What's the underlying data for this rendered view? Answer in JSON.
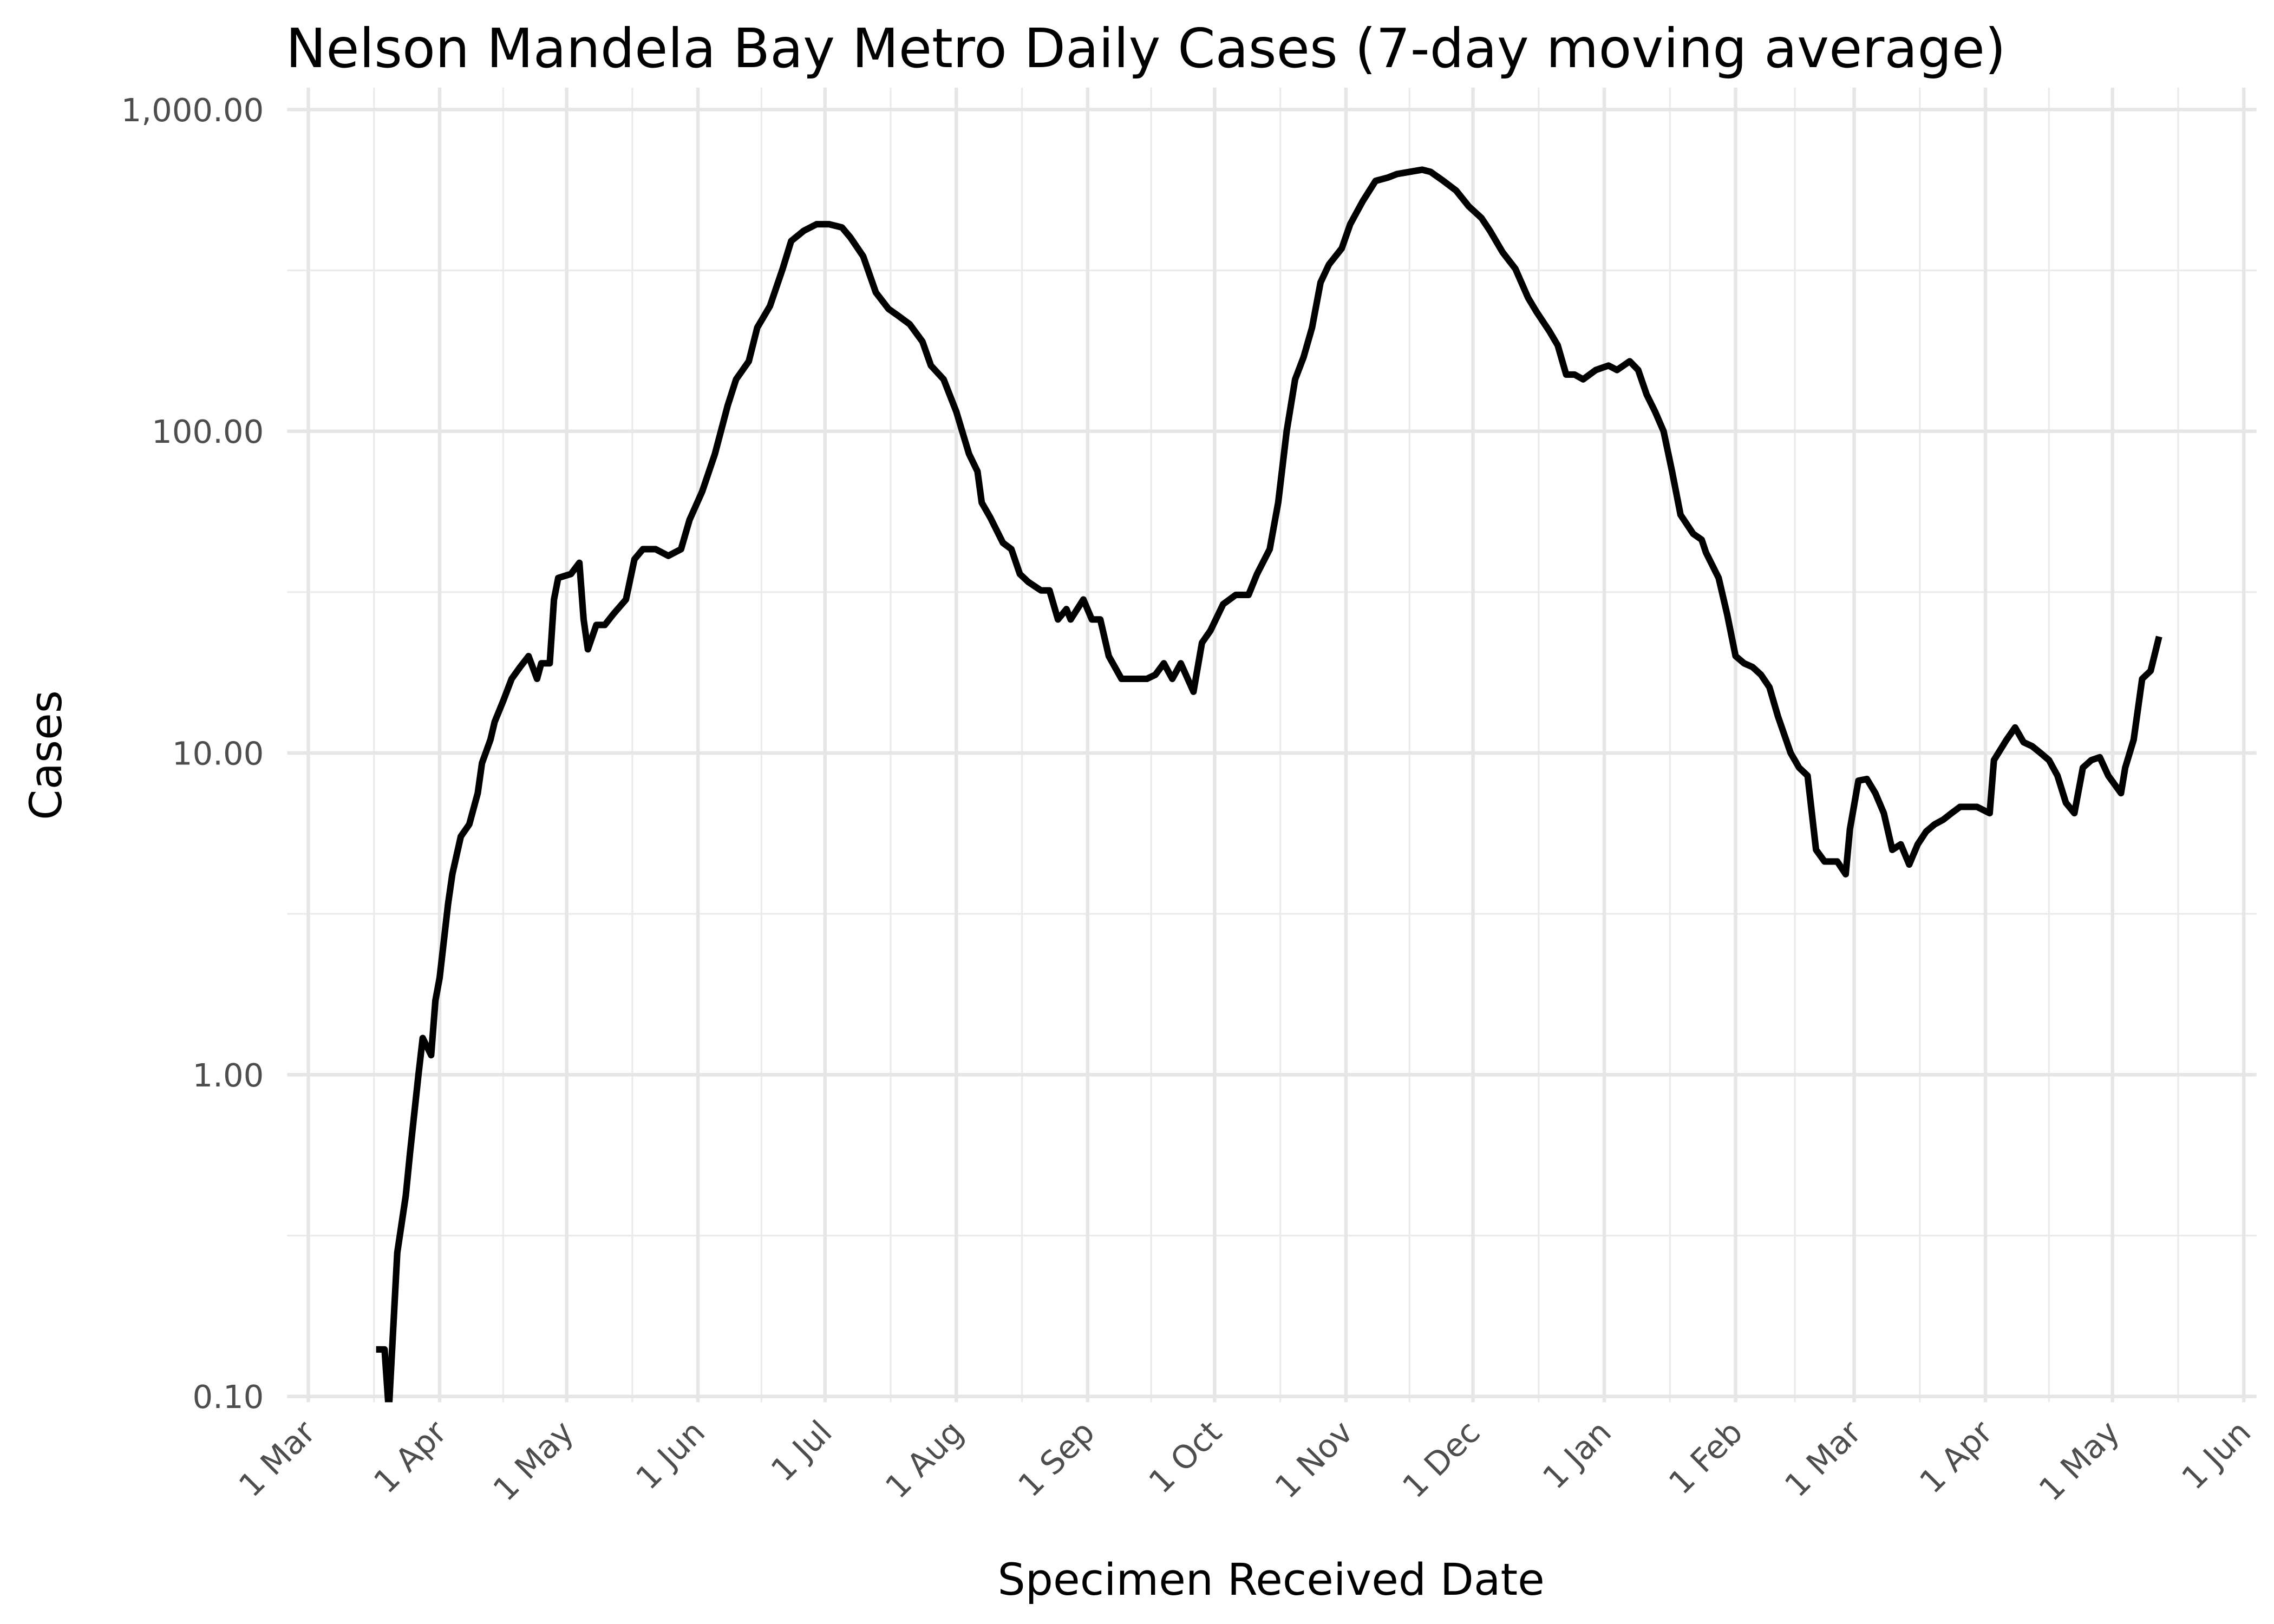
{
  "chart_data": {
    "type": "line",
    "title": "Nelson Mandela Bay Metro Daily Cases (7-day moving average)",
    "x_label": "Specimen Received Date",
    "y_label": "Cases",
    "log_y": true,
    "grid": true,
    "xlim": [
      -5,
      460
    ],
    "ylim": [
      0.1,
      1000
    ],
    "xticks": [
      {
        "value": 0,
        "label": "1 Mar"
      },
      {
        "value": 31,
        "label": "1 Apr"
      },
      {
        "value": 61,
        "label": "1 May"
      },
      {
        "value": 92,
        "label": "1 Jun"
      },
      {
        "value": 122,
        "label": "1 Jul"
      },
      {
        "value": 153,
        "label": "1 Aug"
      },
      {
        "value": 184,
        "label": "1 Sep"
      },
      {
        "value": 214,
        "label": "1 Oct"
      },
      {
        "value": 245,
        "label": "1 Nov"
      },
      {
        "value": 275,
        "label": "1 Dec"
      },
      {
        "value": 306,
        "label": "1 Jan"
      },
      {
        "value": 337,
        "label": "1 Feb"
      },
      {
        "value": 365,
        "label": "1 Mar"
      },
      {
        "value": 396,
        "label": "1 Apr"
      },
      {
        "value": 426,
        "label": "1 May"
      },
      {
        "value": 457,
        "label": "1 Jun"
      }
    ],
    "yticks": [
      {
        "value": 0.1,
        "label": "0.10"
      },
      {
        "value": 1,
        "label": "1.00"
      },
      {
        "value": 10,
        "label": "10.00"
      },
      {
        "value": 100,
        "label": "100.00"
      },
      {
        "value": 1000,
        "label": "1,000.00"
      }
    ],
    "x": [
      16,
      18,
      19,
      21,
      23,
      24,
      26,
      27,
      29,
      30,
      31,
      33,
      34,
      36,
      38,
      40,
      41,
      43,
      44,
      46,
      48,
      50,
      52,
      54,
      55,
      57,
      58,
      59,
      62,
      64,
      65,
      66,
      68,
      70,
      72,
      75,
      77,
      79,
      82,
      85,
      88,
      90,
      93,
      96,
      99,
      101,
      104,
      106,
      109,
      112,
      114,
      117,
      120,
      123,
      126,
      128,
      131,
      134,
      137,
      139,
      142,
      145,
      147,
      150,
      153,
      156,
      158,
      159,
      161,
      164,
      166,
      168,
      170,
      173,
      175,
      177,
      179,
      180,
      183,
      185,
      187,
      189,
      192,
      195,
      198,
      200,
      202,
      204,
      206,
      209,
      211,
      213,
      216,
      219,
      222,
      224,
      227,
      229,
      231,
      233,
      235,
      237,
      239,
      241,
      244,
      246,
      249,
      252,
      255,
      257,
      260,
      263,
      265,
      268,
      271,
      274,
      277,
      279,
      282,
      285,
      288,
      290,
      293,
      295,
      297,
      299,
      301,
      304,
      307,
      309,
      312,
      314,
      316,
      318,
      320,
      322,
      324,
      327,
      329,
      330,
      333,
      335,
      337,
      339,
      341,
      343,
      345,
      347,
      350,
      352,
      354,
      356,
      358,
      361,
      363,
      364,
      366,
      368,
      370,
      372,
      374,
      376,
      378,
      380,
      382,
      384,
      386,
      388,
      390,
      392,
      394,
      397,
      398,
      401,
      403,
      405,
      407,
      409,
      411,
      413,
      415,
      417,
      419,
      421,
      423,
      425,
      428,
      429,
      431,
      433,
      435,
      437
    ],
    "series": [
      {
        "name": "Cases",
        "color": "#000000",
        "values": [
          0.14,
          0.14,
          0.09,
          0.28,
          0.42,
          0.57,
          1.0,
          1.3,
          1.15,
          1.7,
          2.0,
          3.4,
          4.2,
          5.5,
          6.0,
          7.5,
          9.3,
          11,
          12.5,
          14.5,
          17,
          18.5,
          20,
          17,
          19,
          19,
          30,
          35,
          36,
          39,
          26,
          21,
          25,
          25,
          27,
          30,
          40,
          43,
          43,
          41,
          43,
          53,
          65,
          85,
          120,
          145,
          165,
          210,
          245,
          320,
          390,
          420,
          440,
          440,
          430,
          400,
          350,
          270,
          240,
          230,
          215,
          190,
          160,
          145,
          115,
          85,
          75,
          60,
          54,
          45,
          43,
          36,
          34,
          32,
          32,
          26,
          28,
          26,
          30,
          26,
          26,
          20,
          17,
          17,
          17,
          17.5,
          19,
          17,
          19,
          15.5,
          22,
          24,
          29,
          31,
          31,
          36,
          43,
          60,
          100,
          145,
          170,
          210,
          290,
          330,
          370,
          440,
          520,
          600,
          615,
          630,
          640,
          650,
          640,
          600,
          560,
          500,
          460,
          420,
          360,
          320,
          260,
          235,
          205,
          185,
          150,
          150,
          145,
          155,
          160,
          155,
          165,
          155,
          130,
          115,
          100,
          75,
          55,
          48,
          46,
          42,
          35,
          27,
          20,
          19,
          18.5,
          17.5,
          16,
          13,
          10,
          9,
          8.5,
          5.0,
          4.6,
          4.6,
          4.2,
          5.8,
          8.2,
          8.3,
          7.5,
          6.5,
          5.0,
          5.2,
          4.5,
          5.2,
          5.7,
          6.0,
          6.2,
          6.5,
          6.8,
          6.8,
          6.8,
          6.5,
          9.5,
          11,
          12,
          10.8,
          10.5,
          10,
          9.5,
          8.5,
          7.0,
          6.5,
          9.0,
          9.5,
          9.7,
          8.5,
          7.5,
          9.0,
          11,
          17,
          18,
          23
        ]
      }
    ]
  }
}
